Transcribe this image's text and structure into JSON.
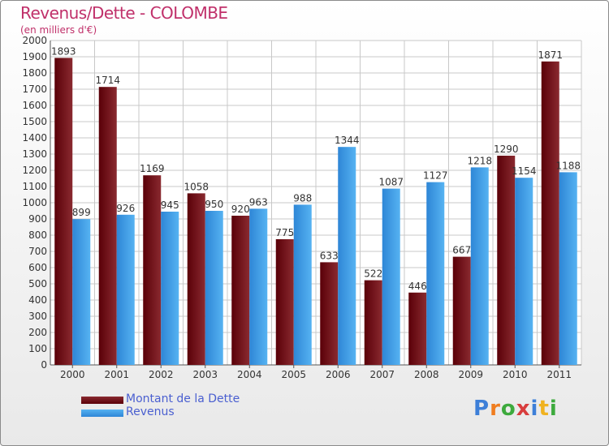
{
  "header": {
    "title": "Revenus/Dette - COLOMBE",
    "subtitle": "(en milliers d'€)"
  },
  "chart_data": {
    "type": "bar",
    "title": "Revenus/Dette - COLOMBE",
    "subtitle": "(en milliers d'€)",
    "categories": [
      "2000",
      "2001",
      "2002",
      "2003",
      "2004",
      "2005",
      "2006",
      "2007",
      "2008",
      "2009",
      "2010",
      "2011"
    ],
    "series": [
      {
        "name": "Montant de la Dette",
        "color": "#7a1a22",
        "values": [
          1893,
          1714,
          1169,
          1058,
          920,
          775,
          633,
          522,
          446,
          667,
          1290,
          1871
        ]
      },
      {
        "name": "Revenus",
        "color": "#3d9fe6",
        "values": [
          899,
          926,
          945,
          950,
          963,
          988,
          1344,
          1087,
          1127,
          1218,
          1154,
          1188
        ]
      }
    ],
    "ylim": [
      0,
      2000
    ],
    "yticks": [
      0,
      100,
      200,
      300,
      400,
      500,
      600,
      700,
      800,
      900,
      1000,
      1100,
      1200,
      1300,
      1400,
      1500,
      1600,
      1700,
      1800,
      1900,
      2000
    ],
    "grid": true,
    "legend_position": "bottom-left"
  },
  "legend": {
    "items": [
      {
        "label": "Montant de la Dette",
        "color": "#7a1a22"
      },
      {
        "label": "Revenus",
        "color": "#3d9fe6"
      }
    ]
  },
  "logo": {
    "letters": [
      "P",
      "r",
      "o",
      "x",
      "i",
      "t",
      "i"
    ],
    "colors": [
      "#3d7fd8",
      "#f07d1f",
      "#3daa3d",
      "#d83d3d",
      "#3d7fd8",
      "#f0b21f",
      "#3daa3d"
    ]
  }
}
